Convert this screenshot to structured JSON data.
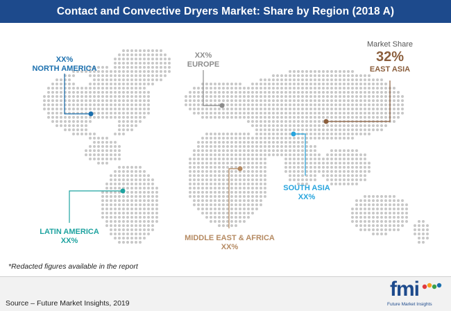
{
  "title": "Contact and Convective Dryers Market: Share by Region (2018 A)",
  "colors": {
    "title_bar": "#1d4a8c",
    "map_dots": "#c7c7c7",
    "north_america": "#1a6fae",
    "europe": "#8c8c8c",
    "east_asia": "#8b5e3c",
    "south_asia": "#27a4dd",
    "latin_america": "#1ea3a0",
    "middle_east_africa": "#b58a62"
  },
  "regions": {
    "north_america": {
      "value": "XX%",
      "name": "NORTH AMERICA"
    },
    "europe": {
      "value": "XX%",
      "name": "EUROPE"
    },
    "east_asia": {
      "caption": "Market Share",
      "value": "32%",
      "name": "EAST ASIA"
    },
    "south_asia": {
      "name": "SOUTH ASIA",
      "value": "XX%"
    },
    "latin_america": {
      "name": "LATIN AMERICA",
      "value": "XX%"
    },
    "middle_east_africa": {
      "name": "MIDDLE EAST & AFRICA",
      "value": "XX%"
    }
  },
  "note": "*Redacted figures available in the report",
  "source": "Source – Future Market Insights, 2019",
  "logo": {
    "mark": "fmi",
    "text": "Future Market Insights",
    "dot_colors": [
      "#e03a3e",
      "#f6a21e",
      "#3aa04a",
      "#1a6fae"
    ]
  }
}
